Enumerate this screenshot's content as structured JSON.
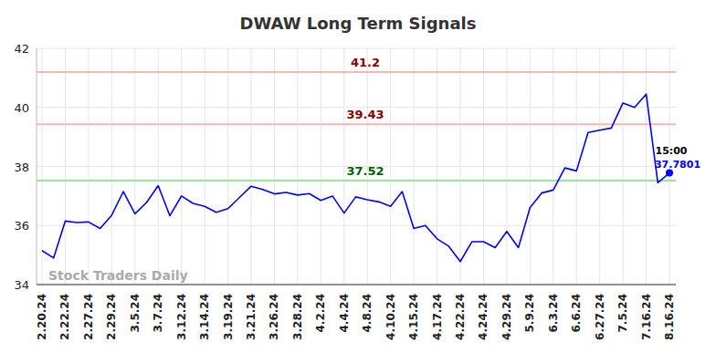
{
  "chart_data": {
    "type": "line",
    "title": "DWAW Long Term Signals",
    "categories": [
      "2.20.24",
      null,
      "2.22.24",
      null,
      "2.27.24",
      null,
      "2.29.24",
      null,
      "3.5.24",
      null,
      "3.7.24",
      null,
      "3.12.24",
      null,
      "3.14.24",
      null,
      "3.19.24",
      null,
      "3.21.24",
      null,
      "3.26.24",
      null,
      "3.28.24",
      null,
      "4.2.24",
      null,
      "4.4.24",
      null,
      "4.8.24",
      null,
      "4.10.24",
      null,
      "4.15.24",
      null,
      "4.17.24",
      null,
      "4.22.24",
      null,
      "4.24.24",
      null,
      "4.29.24",
      null,
      "5.9.24",
      null,
      "6.3.24",
      null,
      "6.6.24",
      null,
      "6.27.24",
      null,
      "7.5.24",
      null,
      "7.16.24",
      null,
      "8.16.24"
    ],
    "series": [
      {
        "name": "DWAW",
        "color": "#0000ff",
        "values": [
          35.15,
          34.9,
          36.15,
          36.1,
          36.12,
          35.9,
          36.35,
          37.15,
          36.4,
          36.78,
          37.35,
          36.33,
          37.0,
          36.75,
          36.65,
          36.45,
          36.57,
          36.95,
          37.33,
          37.22,
          37.07,
          37.12,
          37.03,
          37.08,
          36.85,
          37.0,
          36.42,
          36.97,
          36.87,
          36.8,
          36.65,
          37.15,
          35.9,
          36.0,
          35.55,
          35.3,
          34.78,
          35.45,
          35.45,
          35.25,
          35.8,
          35.25,
          36.6,
          37.1,
          37.2,
          37.95,
          37.85,
          39.15,
          39.23,
          39.3,
          40.15,
          40.0,
          40.45,
          37.45,
          37.7801
        ]
      }
    ],
    "reference_lines": [
      {
        "value": 41.2,
        "color": "#8b0000"
      },
      {
        "value": 39.43,
        "color": "#8b0000"
      },
      {
        "value": 37.52,
        "color": "#006400"
      }
    ],
    "time_label": "15:00",
    "watermark": "Stock Traders Daily",
    "ylim": [
      34,
      42
    ],
    "yticks": [
      34,
      36,
      38,
      40,
      42
    ],
    "grid": true
  }
}
